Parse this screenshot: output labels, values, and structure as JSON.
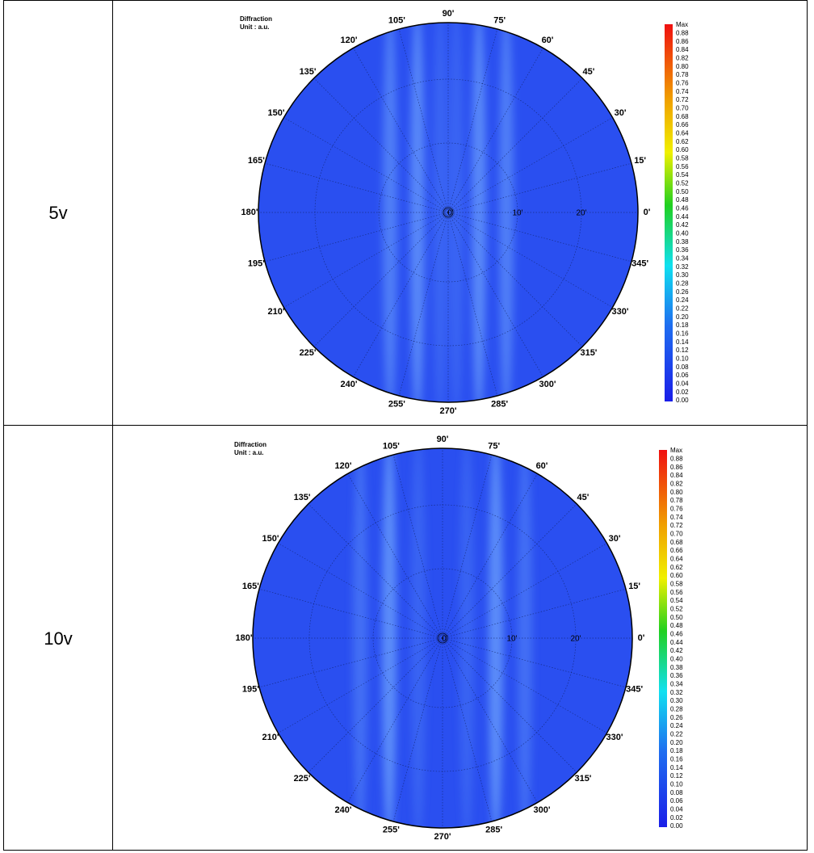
{
  "table": {
    "rows": [
      {
        "label": "5v",
        "plot": {
          "title": "Diffraction",
          "unit": "Unit : a.u.",
          "angle_labels": [
            "0'",
            "15'",
            "30'",
            "45'",
            "60'",
            "75'",
            "90'",
            "105'",
            "120'",
            "135'",
            "150'",
            "165'",
            "180'",
            "195'",
            "210'",
            "225'",
            "240'",
            "255'",
            "270'",
            "285'",
            "300'",
            "315'",
            "330'",
            "345'"
          ],
          "radial_labels": [
            "0'",
            "10'",
            "20'"
          ],
          "colorbar_labels": [
            "Max",
            "0.88",
            "0.86",
            "0.84",
            "0.82",
            "0.80",
            "0.78",
            "0.76",
            "0.74",
            "0.72",
            "0.70",
            "0.68",
            "0.66",
            "0.64",
            "0.62",
            "0.60",
            "0.58",
            "0.56",
            "0.54",
            "0.52",
            "0.50",
            "0.48",
            "0.46",
            "0.44",
            "0.42",
            "0.40",
            "0.38",
            "0.36",
            "0.34",
            "0.32",
            "0.30",
            "0.28",
            "0.26",
            "0.24",
            "0.22",
            "0.20",
            "0.18",
            "0.16",
            "0.14",
            "0.12",
            "0.10",
            "0.08",
            "0.06",
            "0.04",
            "0.02",
            "0.00"
          ]
        }
      },
      {
        "label": "10v",
        "plot": {
          "title": "Diffraction",
          "unit": "Unit : a.u.",
          "angle_labels": [
            "0'",
            "15'",
            "30'",
            "45'",
            "60'",
            "75'",
            "90'",
            "105'",
            "120'",
            "135'",
            "150'",
            "165'",
            "180'",
            "195'",
            "210'",
            "225'",
            "240'",
            "255'",
            "270'",
            "285'",
            "300'",
            "315'",
            "330'",
            "345'"
          ],
          "radial_labels": [
            "0'",
            "10'",
            "20'"
          ],
          "colorbar_labels": [
            "Max",
            "0.88",
            "0.86",
            "0.84",
            "0.82",
            "0.80",
            "0.78",
            "0.76",
            "0.74",
            "0.72",
            "0.70",
            "0.68",
            "0.66",
            "0.64",
            "0.62",
            "0.60",
            "0.58",
            "0.56",
            "0.54",
            "0.52",
            "0.50",
            "0.48",
            "0.46",
            "0.44",
            "0.42",
            "0.40",
            "0.38",
            "0.36",
            "0.34",
            "0.32",
            "0.30",
            "0.28",
            "0.26",
            "0.24",
            "0.22",
            "0.20",
            "0.18",
            "0.16",
            "0.14",
            "0.12",
            "0.10",
            "0.08",
            "0.06",
            "0.04",
            "0.02",
            "0.00"
          ]
        }
      }
    ]
  }
}
